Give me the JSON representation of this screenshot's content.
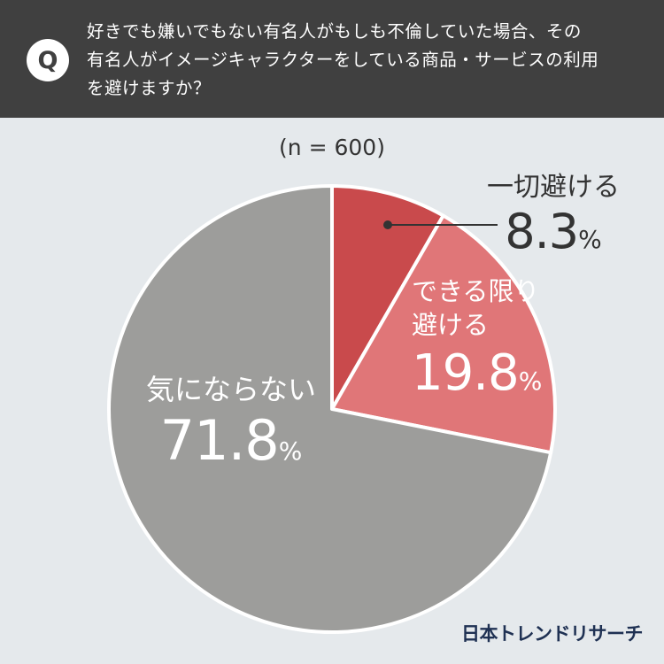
{
  "header": {
    "badge": "Q",
    "question_lines": [
      "好きでも嫌いでもない有名人がもしも不倫していた場合、その",
      "有名人がイメージキャラクターをしている商品・サービスの利用",
      "を避けますか？"
    ]
  },
  "sample_size": "(n = 600)",
  "chart_data": {
    "type": "pie",
    "slices": [
      {
        "label": "一切避ける",
        "value": 8.3,
        "color": "#c94a4c"
      },
      {
        "label_lines": [
          "できる限り",
          "避ける"
        ],
        "value": 19.8,
        "color": "#e07678"
      },
      {
        "label": "気にならない",
        "value": 71.8,
        "color": "#9d9d9b"
      }
    ],
    "unit": "%"
  },
  "labels": {
    "avoid_all": {
      "name": "一切避ける",
      "value": "8.3",
      "unit": "%"
    },
    "avoid_some": {
      "line1": "できる限り",
      "line2": "避ける",
      "value": "19.8",
      "unit": "%"
    },
    "dont_care": {
      "name": "気にならない",
      "value": "71.8",
      "unit": "%"
    }
  },
  "brand": "日本トレンドリサーチ"
}
